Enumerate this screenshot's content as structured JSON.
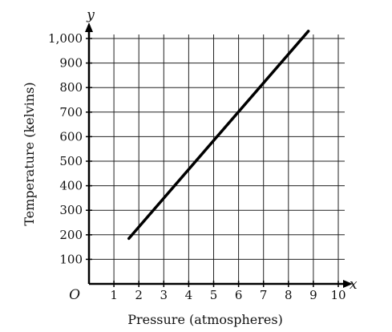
{
  "chart_data": {
    "type": "line",
    "xlabel": "Pressure (atmospheres)",
    "ylabel": "Temperature (kelvins)",
    "x_axis_variable": "x",
    "y_axis_variable": "y",
    "origin_label": "O",
    "xlim": [
      0,
      10
    ],
    "ylim": [
      0,
      1000
    ],
    "x_ticks": [
      1,
      2,
      3,
      4,
      5,
      6,
      7,
      8,
      9,
      10
    ],
    "y_ticks": [
      100,
      200,
      300,
      400,
      500,
      600,
      700,
      800,
      900,
      1000
    ],
    "x_tick_labels": [
      "1",
      "2",
      "3",
      "4",
      "5",
      "6",
      "7",
      "8",
      "9",
      "10"
    ],
    "y_tick_labels": [
      "100",
      "200",
      "300",
      "400",
      "500",
      "600",
      "700",
      "800",
      "900",
      "1,000"
    ],
    "grid": true,
    "series": [
      {
        "x": [
          1.6,
          8.8
        ],
        "y": [
          185,
          1030
        ]
      }
    ]
  }
}
